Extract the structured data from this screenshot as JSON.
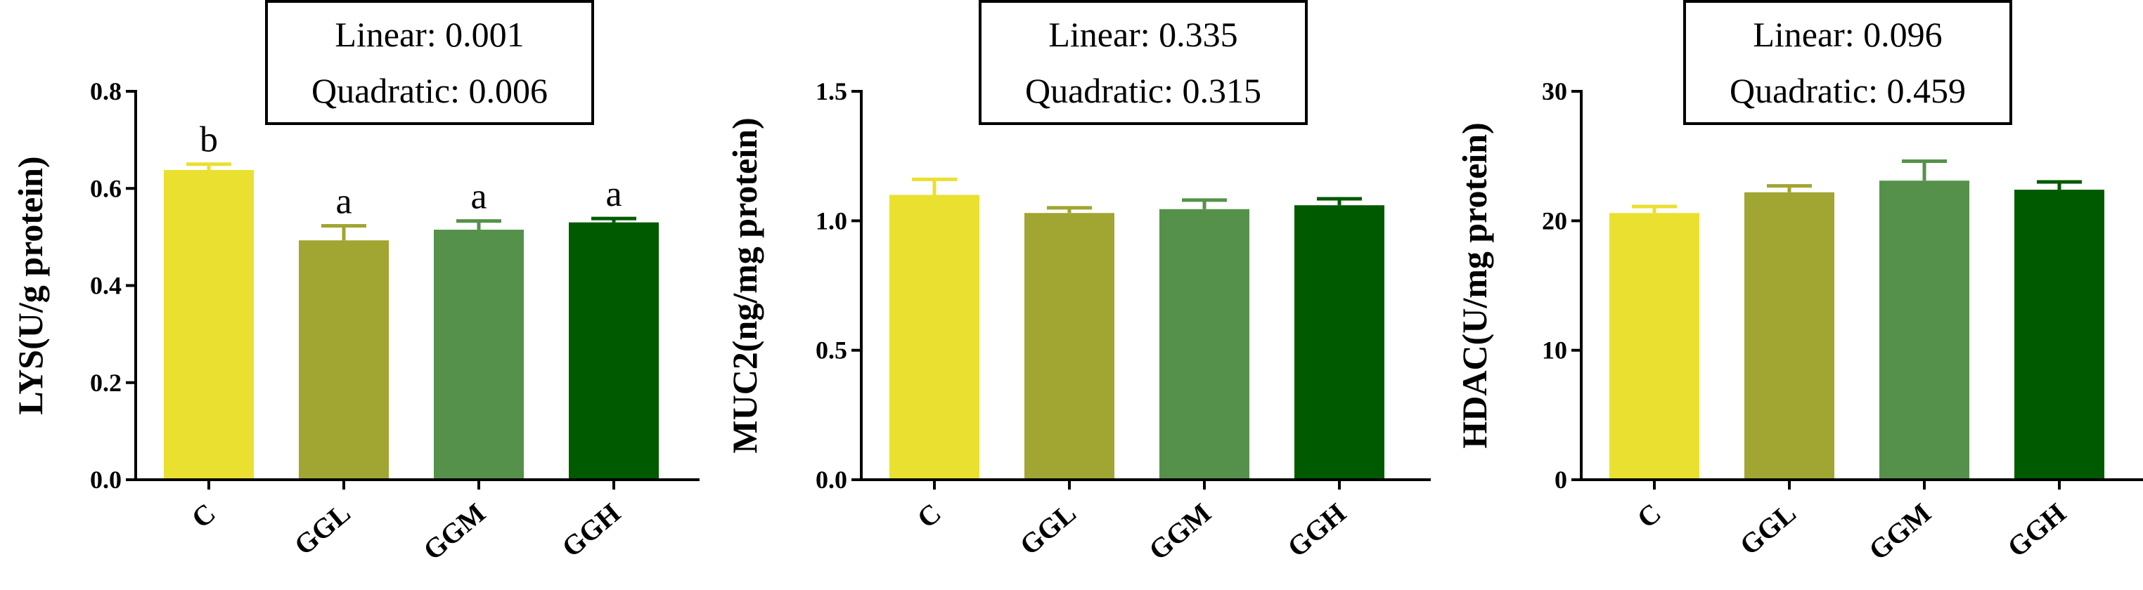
{
  "chart_data": [
    {
      "type": "bar",
      "categories": [
        "C",
        "GGL",
        "GGM",
        "GGH"
      ],
      "values": [
        0.638,
        0.493,
        0.515,
        0.53
      ],
      "errors": [
        0.012,
        0.03,
        0.018,
        0.008
      ],
      "letters": [
        "b",
        "a",
        "a",
        "a"
      ],
      "colors": [
        "#EAE02F",
        "#A1A531",
        "#55914A",
        "#005A00"
      ],
      "ylabel": "LYS(U/g protein)",
      "xlabel": "",
      "ylim": [
        0,
        0.8
      ],
      "yticks": [
        "0.0",
        "0.2",
        "0.4",
        "0.6",
        "0.8"
      ],
      "stats": [
        "Linear: 0.001",
        "Quadratic: 0.006"
      ],
      "grid": false
    },
    {
      "type": "bar",
      "categories": [
        "C",
        "GGL",
        "GGM",
        "GGH"
      ],
      "values": [
        1.1,
        1.03,
        1.045,
        1.06
      ],
      "errors": [
        0.06,
        0.02,
        0.035,
        0.025
      ],
      "letters": [
        "",
        "",
        "",
        ""
      ],
      "colors": [
        "#EAE02F",
        "#A1A531",
        "#55914A",
        "#005A00"
      ],
      "ylabel": "MUC2(ng/mg protein)",
      "xlabel": "",
      "ylim": [
        0,
        1.5
      ],
      "yticks": [
        "0.0",
        "0.5",
        "1.0",
        "1.5"
      ],
      "stats": [
        "Linear: 0.335",
        "Quadratic: 0.315"
      ],
      "grid": false
    },
    {
      "type": "bar",
      "categories": [
        "C",
        "GGL",
        "GGM",
        "GGH"
      ],
      "values": [
        20.6,
        22.2,
        23.1,
        22.4
      ],
      "errors": [
        0.5,
        0.5,
        1.5,
        0.6
      ],
      "letters": [
        "",
        "",
        "",
        ""
      ],
      "colors": [
        "#EAE02F",
        "#A1A531",
        "#55914A",
        "#005A00"
      ],
      "ylabel": "HDAC(U/mg protein)",
      "xlabel": "",
      "ylim": [
        0,
        30
      ],
      "yticks": [
        "0",
        "10",
        "20",
        "30"
      ],
      "stats": [
        "Linear: 0.096",
        "Quadratic: 0.459"
      ],
      "grid": false
    }
  ]
}
